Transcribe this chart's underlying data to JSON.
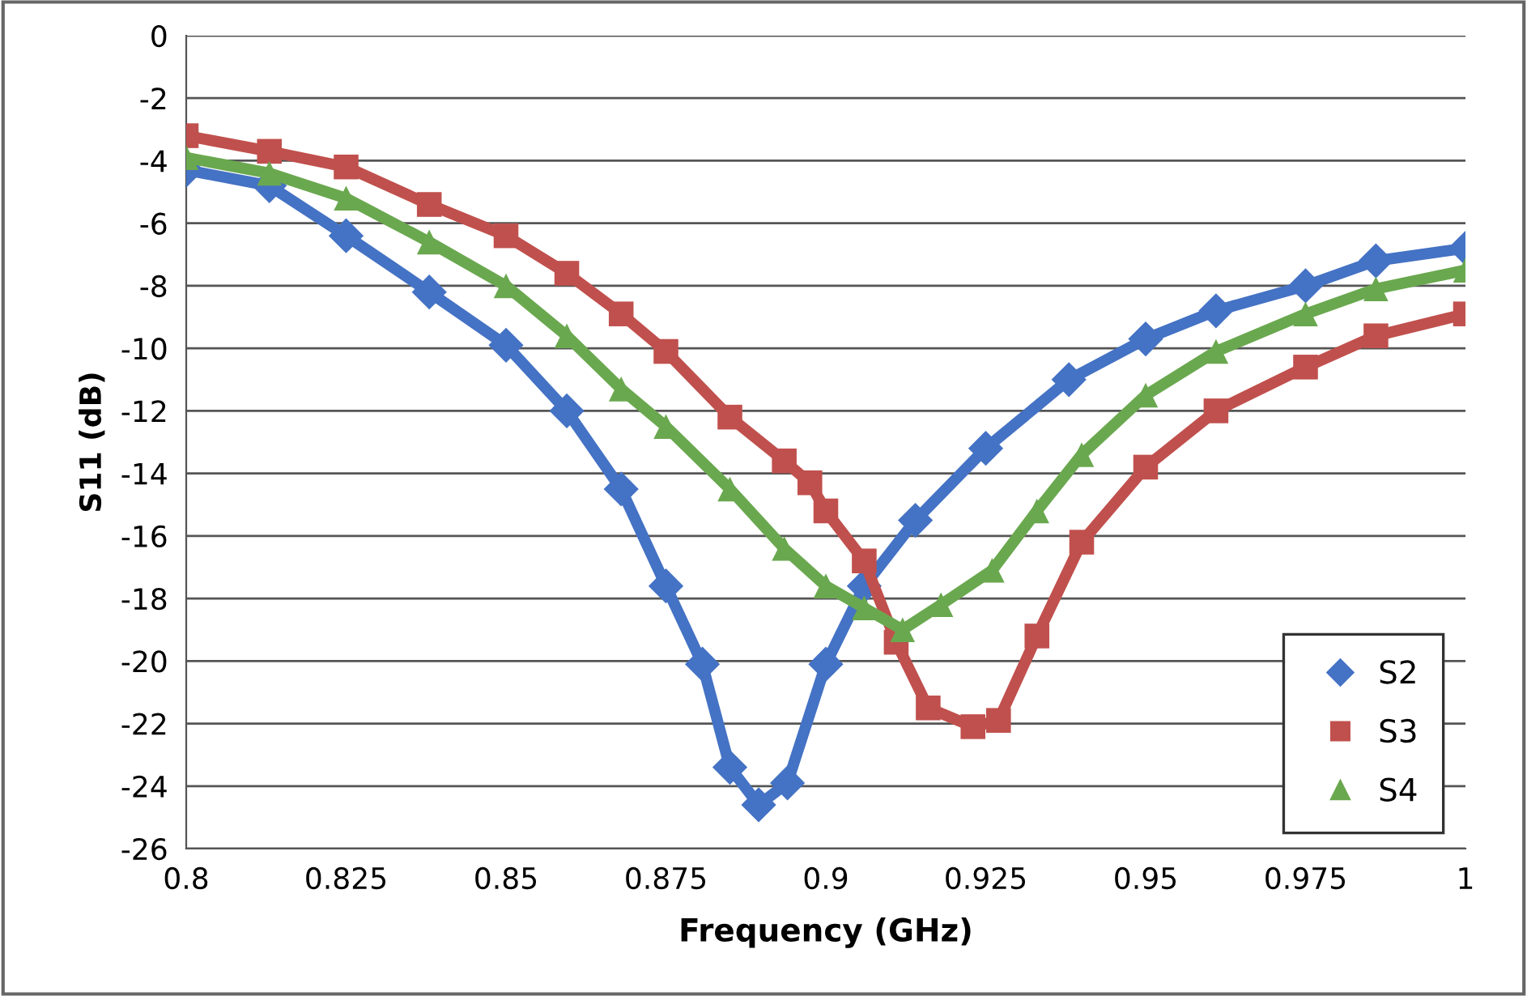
{
  "chart_data": {
    "type": "line",
    "xlabel": "Frequency (GHz)",
    "ylabel": "S11 (dB)",
    "xlim": [
      0.8,
      1
    ],
    "xticks": [
      0.8,
      0.825,
      0.85,
      0.875,
      0.9,
      0.925,
      0.95,
      0.975,
      1
    ],
    "ylim": [
      -26,
      0
    ],
    "yticks": [
      -26,
      -24,
      -22,
      -20,
      -18,
      -16,
      -14,
      -12,
      -10,
      -8,
      -6,
      -4,
      -2,
      0
    ],
    "grid": "y",
    "legend": "bottom right",
    "series": [
      {
        "name": "S2",
        "color": "#4472c4",
        "marker": "diamond",
        "x": [
          0.8,
          0.813,
          0.825,
          0.838,
          0.85,
          0.8595,
          0.868,
          0.875,
          0.8807,
          0.885,
          0.8895,
          0.894,
          0.9,
          0.906,
          0.914,
          0.925,
          0.938,
          0.95,
          0.961,
          0.975,
          0.986,
          1.0
        ],
        "values": [
          -4.3,
          -4.8,
          -6.4,
          -8.2,
          -9.9,
          -12.0,
          -14.5,
          -17.6,
          -20.1,
          -23.4,
          -24.6,
          -23.9,
          -20.1,
          -17.6,
          -15.5,
          -13.2,
          -11.0,
          -9.7,
          -8.8,
          -8.0,
          -7.2,
          -6.8
        ]
      },
      {
        "name": "S3",
        "color": "#c0504d",
        "marker": "square",
        "x": [
          0.8,
          0.813,
          0.825,
          0.838,
          0.85,
          0.8595,
          0.868,
          0.875,
          0.885,
          0.8935,
          0.8975,
          0.9,
          0.906,
          0.911,
          0.916,
          0.923,
          0.927,
          0.933,
          0.94,
          0.95,
          0.961,
          0.975,
          0.986,
          1.0
        ],
        "values": [
          -3.2,
          -3.7,
          -4.2,
          -5.4,
          -6.4,
          -7.6,
          -8.9,
          -10.1,
          -12.2,
          -13.6,
          -14.3,
          -15.2,
          -16.8,
          -19.4,
          -21.5,
          -22.1,
          -21.9,
          -19.2,
          -16.2,
          -13.8,
          -12.0,
          -10.6,
          -9.6,
          -8.9
        ]
      },
      {
        "name": "S4",
        "color": "#6aa84f",
        "marker": "triangle",
        "x": [
          0.8,
          0.813,
          0.825,
          0.838,
          0.85,
          0.8595,
          0.868,
          0.875,
          0.885,
          0.8935,
          0.9,
          0.906,
          0.912,
          0.918,
          0.926,
          0.933,
          0.94,
          0.95,
          0.961,
          0.975,
          0.986,
          1.0
        ],
        "values": [
          -3.9,
          -4.4,
          -5.2,
          -6.6,
          -8.0,
          -9.6,
          -11.3,
          -12.5,
          -14.5,
          -16.4,
          -17.6,
          -18.3,
          -19.0,
          -18.2,
          -17.1,
          -15.2,
          -13.4,
          -11.5,
          -10.1,
          -8.9,
          -8.1,
          -7.5
        ]
      }
    ]
  }
}
